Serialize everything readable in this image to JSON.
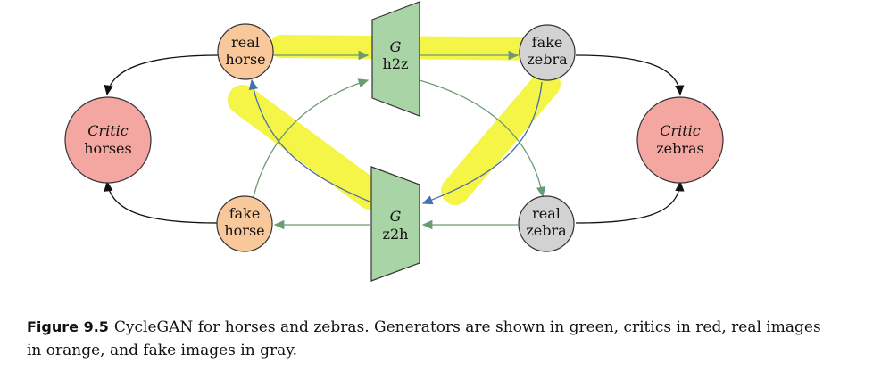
{
  "colors": {
    "generator": "#a8d4a6",
    "critic": "#f4a7a0",
    "real": "#f8c89a",
    "fake": "#d2d2d2",
    "highlight": "#f2f20a",
    "green_arrow": "#6a9c72",
    "blue_arrow": "#4a6fb0"
  },
  "generators": {
    "h2z": {
      "symbol": "G",
      "label": "h2z"
    },
    "z2h": {
      "symbol": "G",
      "label": "z2h"
    }
  },
  "nodes": {
    "real_horse": {
      "line1": "real",
      "line2": "horse"
    },
    "fake_zebra": {
      "line1": "fake",
      "line2": "zebra"
    },
    "fake_horse": {
      "line1": "fake",
      "line2": "horse"
    },
    "real_zebra": {
      "line1": "real",
      "line2": "zebra"
    },
    "critic_horses": {
      "line1": "Critic",
      "line2": "horses"
    },
    "critic_zebras": {
      "line1": "Critic",
      "line2": "zebras"
    }
  },
  "caption": {
    "label": "Figure 9.5",
    "text": "CycleGAN for horses and zebras. Generators are shown in green, critics in red, real images in orange, and fake images in gray."
  }
}
